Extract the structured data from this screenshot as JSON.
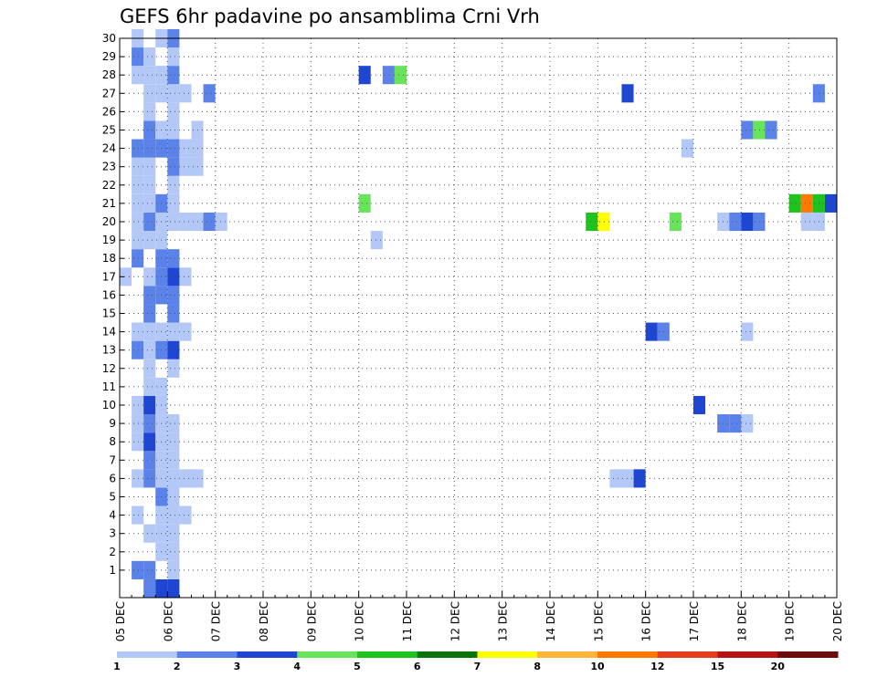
{
  "chart_data": {
    "type": "heatmap",
    "title": "GEFS 6hr padavine po ansamblima Crni Vrh",
    "xlabel": "",
    "ylabel": "",
    "x_tick_labels": [
      "05 DEC",
      "06 DEC",
      "07 DEC",
      "08 DEC",
      "09 DEC",
      "10 DEC",
      "11 DEC",
      "12 DEC",
      "13 DEC",
      "14 DEC",
      "15 DEC",
      "16 DEC",
      "17 DEC",
      "18 DEC",
      "19 DEC",
      "20 DEC"
    ],
    "y_tick_labels": [
      "1",
      "2",
      "3",
      "4",
      "5",
      "6",
      "7",
      "8",
      "9",
      "10",
      "11",
      "12",
      "13",
      "14",
      "15",
      "16",
      "17",
      "18",
      "19",
      "20",
      "21",
      "22",
      "23",
      "24",
      "25",
      "26",
      "27",
      "28",
      "29",
      "30"
    ],
    "xlim": [
      0,
      60
    ],
    "ylim": [
      0,
      30
    ],
    "x_unit": "6-hour step from 05 DEC 00Z",
    "grid": true,
    "legend_position": "bottom",
    "legend": {
      "labels": [
        "1",
        "2",
        "3",
        "4",
        "5",
        "6",
        "7",
        "8",
        "10",
        "12",
        "15",
        "20"
      ],
      "colors": [
        "#b4c8f8",
        "#5a82e8",
        "#1e46d2",
        "#68e45a",
        "#1ec31e",
        "#0a730a",
        "#ffff00",
        "#ffb43c",
        "#ff7800",
        "#e63c1e",
        "#b41414",
        "#6e0a0a"
      ]
    },
    "cells": [
      [
        1,
        1,
        2
      ],
      [
        2,
        1,
        2
      ],
      [
        2,
        0,
        2
      ],
      [
        3,
        0,
        3
      ],
      [
        4,
        0,
        3
      ],
      [
        2,
        3,
        1
      ],
      [
        3,
        3,
        1
      ],
      [
        4,
        3,
        1
      ],
      [
        4,
        2,
        1
      ],
      [
        4,
        1,
        1
      ],
      [
        3,
        2,
        1
      ],
      [
        1,
        4,
        1
      ],
      [
        4,
        4,
        1
      ],
      [
        3,
        4,
        1
      ],
      [
        5,
        4,
        1
      ],
      [
        4,
        5,
        1
      ],
      [
        3,
        5,
        2
      ],
      [
        1,
        6,
        1
      ],
      [
        2,
        6,
        2
      ],
      [
        3,
        6,
        1
      ],
      [
        4,
        6,
        1
      ],
      [
        5,
        6,
        1
      ],
      [
        6,
        6,
        1
      ],
      [
        2,
        7,
        2
      ],
      [
        4,
        7,
        1
      ],
      [
        3,
        7,
        1
      ],
      [
        1,
        8,
        1
      ],
      [
        2,
        8,
        3
      ],
      [
        3,
        8,
        1
      ],
      [
        4,
        8,
        1
      ],
      [
        1,
        9,
        1
      ],
      [
        2,
        9,
        2
      ],
      [
        3,
        9,
        1
      ],
      [
        4,
        9,
        1
      ],
      [
        1,
        10,
        1
      ],
      [
        2,
        10,
        3
      ],
      [
        3,
        10,
        1
      ],
      [
        2,
        11,
        1
      ],
      [
        3,
        11,
        1
      ],
      [
        2,
        12,
        1
      ],
      [
        4,
        12,
        1
      ],
      [
        1,
        13,
        2
      ],
      [
        2,
        13,
        1
      ],
      [
        3,
        13,
        2
      ],
      [
        4,
        13,
        3
      ],
      [
        1,
        14,
        1
      ],
      [
        2,
        14,
        1
      ],
      [
        3,
        14,
        1
      ],
      [
        4,
        14,
        1
      ],
      [
        5,
        14,
        1
      ],
      [
        2,
        15,
        2
      ],
      [
        4,
        15,
        2
      ],
      [
        2,
        16,
        2
      ],
      [
        3,
        16,
        2
      ],
      [
        4,
        16,
        2
      ],
      [
        0,
        17,
        1
      ],
      [
        2,
        17,
        1
      ],
      [
        3,
        17,
        2
      ],
      [
        4,
        17,
        3
      ],
      [
        5,
        17,
        1
      ],
      [
        1,
        18,
        2
      ],
      [
        3,
        18,
        2
      ],
      [
        4,
        18,
        2
      ],
      [
        1,
        19,
        1
      ],
      [
        2,
        19,
        1
      ],
      [
        3,
        19,
        1
      ],
      [
        1,
        20,
        1
      ],
      [
        2,
        20,
        2
      ],
      [
        3,
        20,
        1
      ],
      [
        4,
        20,
        1
      ],
      [
        5,
        20,
        1
      ],
      [
        6,
        20,
        1
      ],
      [
        7,
        20,
        2
      ],
      [
        8,
        20,
        1
      ],
      [
        1,
        21,
        1
      ],
      [
        2,
        21,
        1
      ],
      [
        3,
        21,
        2
      ],
      [
        4,
        21,
        1
      ],
      [
        1,
        22,
        1
      ],
      [
        2,
        22,
        1
      ],
      [
        4,
        22,
        1
      ],
      [
        1,
        23,
        1
      ],
      [
        2,
        23,
        1
      ],
      [
        4,
        23,
        2
      ],
      [
        5,
        23,
        1
      ],
      [
        6,
        23,
        1
      ],
      [
        1,
        24,
        2
      ],
      [
        2,
        24,
        2
      ],
      [
        3,
        24,
        2
      ],
      [
        4,
        24,
        2
      ],
      [
        5,
        24,
        1
      ],
      [
        6,
        24,
        1
      ],
      [
        2,
        25,
        2
      ],
      [
        3,
        25,
        1
      ],
      [
        4,
        25,
        1
      ],
      [
        6,
        25,
        1
      ],
      [
        2,
        26,
        1
      ],
      [
        4,
        26,
        1
      ],
      [
        2,
        27,
        1
      ],
      [
        3,
        27,
        1
      ],
      [
        4,
        27,
        1
      ],
      [
        5,
        27,
        1
      ],
      [
        7,
        27,
        2
      ],
      [
        1,
        28,
        1
      ],
      [
        2,
        28,
        1
      ],
      [
        3,
        28,
        1
      ],
      [
        4,
        28,
        2
      ],
      [
        1,
        29,
        2
      ],
      [
        2,
        29,
        1
      ],
      [
        4,
        29,
        1
      ],
      [
        1,
        30,
        1
      ],
      [
        3,
        30,
        1
      ],
      [
        4,
        30,
        2
      ],
      [
        20,
        21,
        4
      ],
      [
        20,
        28,
        3
      ],
      [
        21,
        19,
        1
      ],
      [
        22,
        28,
        2
      ],
      [
        23,
        28,
        4
      ],
      [
        39,
        20,
        5
      ],
      [
        40,
        20,
        7
      ],
      [
        41,
        6,
        1
      ],
      [
        42,
        6,
        1
      ],
      [
        43,
        6,
        3
      ],
      [
        42,
        27,
        3
      ],
      [
        44,
        14,
        3
      ],
      [
        45,
        14,
        2
      ],
      [
        46,
        20,
        4
      ],
      [
        47,
        24,
        1
      ],
      [
        48,
        10,
        3
      ],
      [
        50,
        9,
        2
      ],
      [
        51,
        9,
        2
      ],
      [
        52,
        9,
        1
      ],
      [
        50,
        20,
        1
      ],
      [
        51,
        20,
        2
      ],
      [
        52,
        20,
        3
      ],
      [
        53,
        20,
        2
      ],
      [
        52,
        14,
        1
      ],
      [
        52,
        25,
        2
      ],
      [
        53,
        25,
        4
      ],
      [
        54,
        25,
        2
      ],
      [
        56,
        21,
        5
      ],
      [
        57,
        21,
        9
      ],
      [
        58,
        21,
        5
      ],
      [
        59,
        21,
        3
      ],
      [
        57,
        20,
        1
      ],
      [
        58,
        20,
        1
      ],
      [
        58,
        27,
        2
      ]
    ]
  }
}
